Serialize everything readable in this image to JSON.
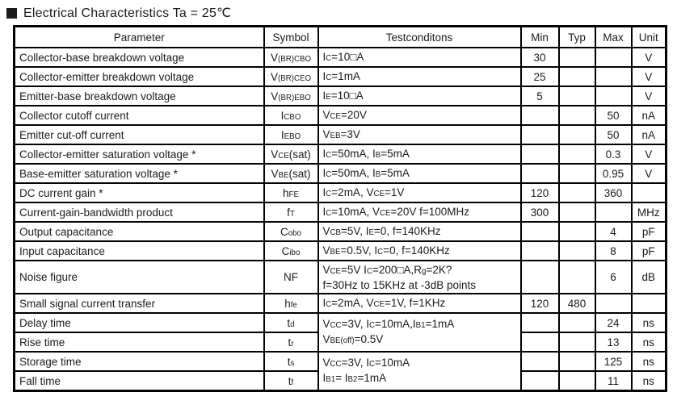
{
  "title": {
    "text": "Electrical Characteristics Ta = 25℃"
  },
  "table": {
    "headers": [
      "Parameter",
      "Symbol",
      "Testconditons",
      "Min",
      "Typ",
      "Max",
      "Unit"
    ],
    "rows": [
      {
        "parameter": "Collector-base breakdown voltage",
        "symbol": "V~(BR)CBO~",
        "cond": [
          "I~C~=10□A"
        ],
        "min": "30",
        "typ": "",
        "max": "",
        "unit": "V"
      },
      {
        "parameter": "Collector-emitter breakdown voltage",
        "symbol": "V~(BR)CEO~",
        "cond": [
          "I~C~=1mA"
        ],
        "min": "25",
        "typ": "",
        "max": "",
        "unit": "V"
      },
      {
        "parameter": "Emitter-base breakdown voltage",
        "symbol": "V~(BR)EBO~",
        "cond": [
          "I~E~=10□A"
        ],
        "min": "5",
        "typ": "",
        "max": "",
        "unit": "V"
      },
      {
        "parameter": "Collector cutoff current",
        "symbol": "I~CBO~",
        "cond": [
          "V~CE~=20V"
        ],
        "min": "",
        "typ": "",
        "max": "50",
        "unit": "nA"
      },
      {
        "parameter": "Emitter cut-off current",
        "symbol": "I~EBO~",
        "cond": [
          "V~EB~=3V"
        ],
        "min": "",
        "typ": "",
        "max": "50",
        "unit": "nA"
      },
      {
        "parameter": "Collector-emitter saturation voltage *",
        "symbol": "V~CE~(sat)",
        "cond": [
          "I~C~=50mA, I~B~=5mA"
        ],
        "min": "",
        "typ": "",
        "max": "0.3",
        "unit": "V"
      },
      {
        "parameter": "Base-emitter saturation voltage *",
        "symbol": "V~BE~(sat)",
        "cond": [
          "I~C~=50mA, I~B~=5mA"
        ],
        "min": "",
        "typ": "",
        "max": "0.95",
        "unit": "V"
      },
      {
        "parameter": "DC current gain *",
        "symbol": "h~FE~",
        "cond": [
          "I~C~=2mA, V~CE~=1V"
        ],
        "min": "120",
        "typ": "",
        "max": "360",
        "unit": ""
      },
      {
        "parameter": "Current-gain-bandwidth product",
        "symbol": "f~T~",
        "cond": [
          "I~C~=10mA, V~CE~=20V f=100MHz"
        ],
        "min": "300",
        "typ": "",
        "max": "",
        "unit": "MHz"
      },
      {
        "parameter": "Output capacitance",
        "symbol": "C~obo~",
        "cond": [
          "V~CB~=5V, I~E~=0, f=140KHz"
        ],
        "min": "",
        "typ": "",
        "max": "4",
        "unit": "pF"
      },
      {
        "parameter": "Input capacitance",
        "symbol": "C~ibo~",
        "cond": [
          "V~BE~=0.5V, I~C~=0, f=140KHz"
        ],
        "min": "",
        "typ": "",
        "max": "8",
        "unit": "pF"
      },
      {
        "parameter": "Noise figure",
        "symbol": "NF",
        "cond": [
          "V~CE~=5V I~C~=200□A,R~g~=2K?",
          "f=30Hz to 15KHz at -3dB points"
        ],
        "tall": true,
        "min": "",
        "typ": "",
        "max": "6",
        "unit": "dB"
      },
      {
        "parameter": "Small signal current transfer",
        "symbol": "h~fe~",
        "cond": [
          "I~C~=2mA, V~CE~=1V, f=1KHz"
        ],
        "min": "120",
        "typ": "480",
        "max": "",
        "unit": ""
      },
      {
        "parameter": "Delay time",
        "symbol": "t~d~",
        "cond": [
          "V~CC~=3V, I~C~=10mA,I~B1~=1mA",
          "V~BE(off)~=0.5V"
        ],
        "condspan": 2,
        "min": "",
        "typ": "",
        "max": "24",
        "unit": "ns"
      },
      {
        "parameter": "Rise time",
        "symbol": "t~r~",
        "cond": null,
        "min": "",
        "typ": "",
        "max": "13",
        "unit": "ns"
      },
      {
        "parameter": "Storage time",
        "symbol": "t~s~",
        "cond": [
          "V~CC~=3V, I~C~=10mA",
          "I~B1~= I~B2~=1mA"
        ],
        "condspan": 2,
        "min": "",
        "typ": "",
        "max": "125",
        "unit": "ns"
      },
      {
        "parameter": "Fall time",
        "symbol": "t~f~",
        "cond": null,
        "min": "",
        "typ": "",
        "max": "11",
        "unit": "ns"
      }
    ]
  }
}
